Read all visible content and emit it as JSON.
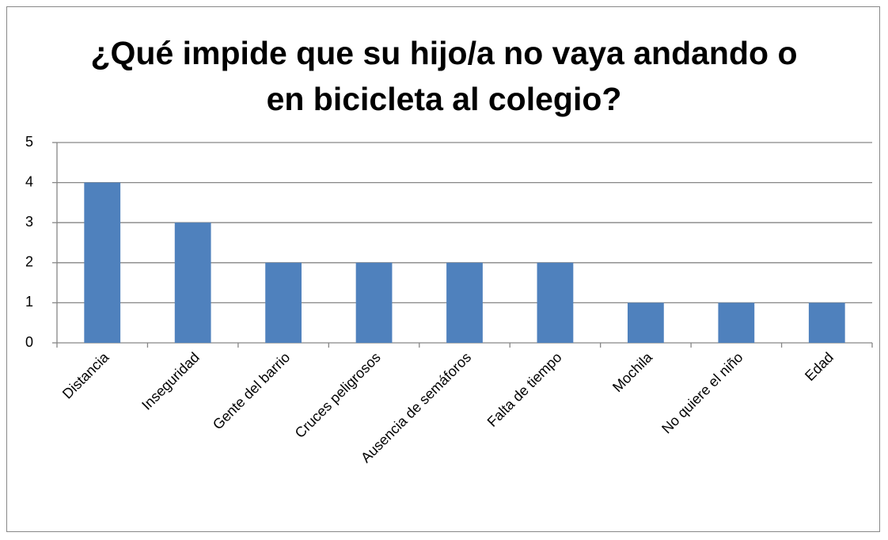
{
  "chart_data": {
    "type": "bar",
    "title": "¿Qué impide que su hijo/a no vaya andando o en bicicleta al colegio?",
    "categories": [
      "Distancia",
      "Inseguridad",
      "Gente del barrio",
      "Cruces peligrosos",
      "Ausencia de semáforos",
      "Falta de tiempo",
      "Mochila",
      "No quiere el niño",
      "Edad"
    ],
    "values": [
      4,
      3,
      2,
      2,
      2,
      2,
      1,
      1,
      1
    ],
    "color": "#4f81bd",
    "ylim": [
      0,
      5
    ],
    "yticks": [
      0,
      1,
      2,
      3,
      4,
      5
    ],
    "grid": true
  }
}
